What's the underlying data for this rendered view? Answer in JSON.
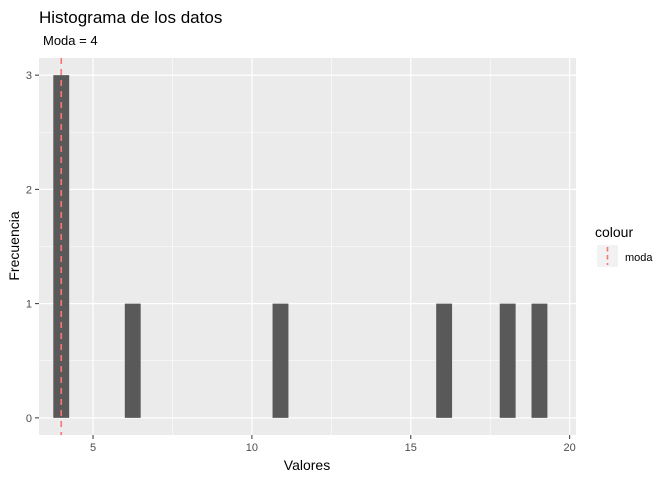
{
  "chart_data": {
    "type": "bar",
    "title": "Histograma de los datos",
    "subtitle": "Moda =  4",
    "xlabel": "Valores",
    "ylabel": "Frecuencia",
    "xlim": [
      3.3,
      20.2
    ],
    "ylim": [
      -0.15,
      3.15
    ],
    "x_ticks": [
      5,
      10,
      15,
      20
    ],
    "y_ticks": [
      0,
      1,
      2,
      3
    ],
    "bin_width": 0.5,
    "bars": [
      {
        "x": 4,
        "count": 3
      },
      {
        "x": 6.25,
        "count": 1
      },
      {
        "x": 10.9,
        "count": 1
      },
      {
        "x": 16.05,
        "count": 1
      },
      {
        "x": 18.05,
        "count": 1
      },
      {
        "x": 19.05,
        "count": 1
      }
    ],
    "mode_line": {
      "x": 4,
      "label": "moda",
      "color": "#F8766D",
      "style": "dashed"
    },
    "legend": {
      "title": "colour",
      "position": "right",
      "entries": [
        "moda"
      ]
    },
    "bar_color": "#595959",
    "panel_background": "#EBEBEB",
    "grid": true
  }
}
